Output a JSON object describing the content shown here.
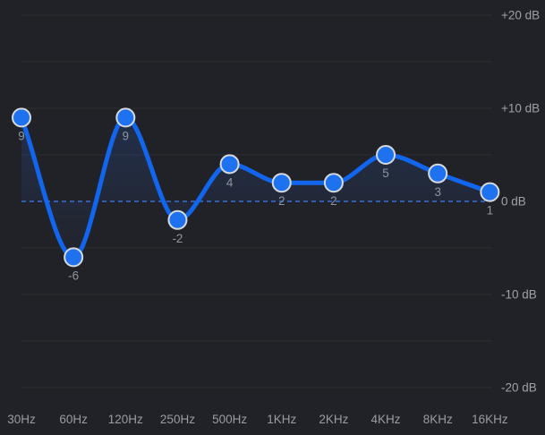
{
  "chart_data": {
    "type": "line",
    "x_categories": [
      "30Hz",
      "60Hz",
      "120Hz",
      "250Hz",
      "500Hz",
      "1KHz",
      "2KHz",
      "4KHz",
      "8KHz",
      "16KHz"
    ],
    "series": [
      {
        "name": "equalizer-gain-db",
        "values": [
          9,
          -6,
          9,
          -2,
          4,
          2,
          2,
          5,
          3,
          1
        ]
      }
    ],
    "point_labels": [
      "9",
      "-6",
      "9",
      "-2",
      "4",
      "2",
      "2",
      "5",
      "3",
      "1"
    ],
    "ylabel": "dB",
    "ylim": [
      -20,
      20
    ],
    "y_ticks": [
      {
        "value": 20,
        "label": "+20 dB"
      },
      {
        "value": 10,
        "label": "+10 dB"
      },
      {
        "value": 0,
        "label": "0 dB"
      },
      {
        "value": -10,
        "label": "-10 dB"
      },
      {
        "value": -20,
        "label": "-20 dB"
      }
    ],
    "gridline_step_db": 5,
    "grid": true,
    "zero_line_style": "dashed",
    "legend_position": "none",
    "curve_style": "smooth-monotone-spline",
    "handles_draggable": true
  },
  "colors": {
    "background": "#212227",
    "gridline": "#2c2d31",
    "zero_line": "#3d80f4",
    "curve": "#1266ee",
    "handle_fill": "#1e72f0",
    "handle_border": "#d7dadd",
    "area_fill": "#2a66e0",
    "axis_text": "#9da1a8",
    "value_text": "#8f949c"
  }
}
